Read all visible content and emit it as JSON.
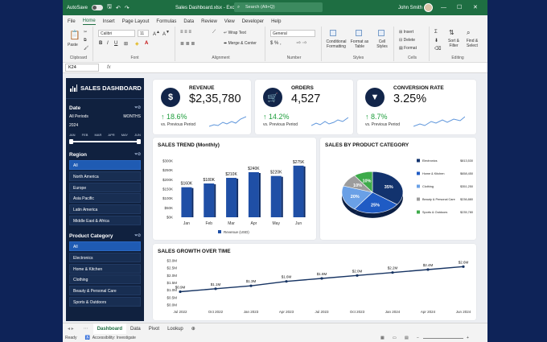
{
  "title_bar": {
    "autosave": "AutoSave",
    "file_name": "Sales Dashboard.xlsx - Excel",
    "search_placeholder": "Search (Alt+Q)",
    "user": "John Smith"
  },
  "menu": [
    "File",
    "Home",
    "Insert",
    "Page Layout",
    "Formulas",
    "Data",
    "Review",
    "View",
    "Developer",
    "Help"
  ],
  "ribbon": {
    "paste": "Paste",
    "clipboard": "Clipboard",
    "font_name": "Calibri",
    "font_size": "11",
    "font": "Font",
    "wrap_text": "Wrap Text",
    "merge_center": "Merge & Center",
    "alignment": "Alignment",
    "number_format": "General",
    "number": "Number",
    "conditional_formatting": "Conditional Formatting",
    "format_as_table": "Format as Table",
    "cell_styles": "Cell Styles",
    "styles": "Styles",
    "insert": "Insert",
    "delete": "Delete",
    "format": "Format",
    "cells": "Cells",
    "sort_filter": "Sort & Filter",
    "find_select": "Find & Select",
    "editing": "Editing"
  },
  "formula_bar": {
    "name_box": "K24",
    "fx": "fx"
  },
  "sidebar": {
    "title": "SALES DASHBOARD",
    "date": {
      "title": "Date",
      "period": "All Periods",
      "period_unit": "MONTHS",
      "year": "2024",
      "months": [
        "JAN",
        "FEB",
        "MAR",
        "APR",
        "MAY",
        "JUN"
      ]
    },
    "region": {
      "title": "Region",
      "items": [
        "All",
        "North America",
        "Europe",
        "Asia Pacific",
        "Latin America",
        "Middle East & Africa"
      ]
    },
    "category": {
      "title": "Product Category",
      "items": [
        "All",
        "Electronics",
        "Home & Kitchen",
        "Clothing",
        "Beauty & Personal Care",
        "Sports & Outdoors"
      ]
    }
  },
  "kpis": [
    {
      "label": "REVENUE",
      "value": "$2,35,780",
      "change": "↑ 18.6%",
      "sub": "vs. Previous Period",
      "icon": "dollar-icon"
    },
    {
      "label": "ORDERS",
      "value": "4,527",
      "change": "↑ 14.2%",
      "sub": "vs. Previous Period",
      "icon": "cart-icon"
    },
    {
      "label": "CONVERSION RATE",
      "value": "3.25%",
      "change": "↑ 8.7%",
      "sub": "vs. Previous Period",
      "icon": "funnel-icon"
    }
  ],
  "charts": {
    "trend_title": "SALES TREND (Monthly)",
    "product_title": "SALES BY PRODUCT CATEGORY",
    "growth_title": "SALES GROWTH OVER TIME"
  },
  "chart_data": [
    {
      "type": "bar",
      "title": "SALES TREND (Monthly)",
      "categories": [
        "Jan",
        "Feb",
        "Mar",
        "Apr",
        "May",
        "Jun"
      ],
      "series": [
        {
          "name": "Revenue (USD)",
          "values": [
            160,
            180,
            210,
            240,
            220,
            275
          ]
        }
      ],
      "value_labels": [
        "$160K",
        "$180K",
        "$210K",
        "$240K",
        "$220K",
        "$275K"
      ],
      "y_ticks": [
        "$0K",
        "$50K",
        "$100K",
        "$150K",
        "$200K",
        "$250K",
        "$300K"
      ],
      "ylim": [
        0,
        300
      ],
      "legend": "bottom",
      "color": "#1f4fa6"
    },
    {
      "type": "pie",
      "title": "SALES BY PRODUCT CATEGORY",
      "labels": [
        "Electronics",
        "Home & Kitchen",
        "Clothing",
        "Beauty & Personal Care",
        "Sports & Outdoors"
      ],
      "values": [
        35,
        25,
        20,
        10,
        10
      ],
      "slice_labels": [
        "35%",
        "25%",
        "20%",
        "10%",
        "10%"
      ],
      "legend_values": [
        "$813,530",
        "$658,450",
        "$351,250",
        "$236,880",
        "$235,780"
      ],
      "colors": [
        "#12336e",
        "#1f5bc4",
        "#6aa0e6",
        "#9c9c9c",
        "#3daa4a"
      ],
      "legend": "right"
    },
    {
      "type": "line",
      "title": "SALES GROWTH OVER TIME",
      "x": [
        "Jul 2022",
        "Oct 2022",
        "Jan 2023",
        "Apr 2023",
        "Jul 2023",
        "Oct 2023",
        "Jan 2024",
        "Apr 2024",
        "Jun 2024"
      ],
      "y": [
        0.9,
        1.1,
        1.3,
        1.6,
        1.8,
        2.0,
        2.2,
        2.4,
        2.6
      ],
      "point_labels": [
        "$0.9M",
        "$1.1M",
        "$1.3M",
        "$1.6M",
        "$1.8M",
        "$2.0M",
        "$2.2M",
        "$2.4M",
        "$2.6M"
      ],
      "y_ticks": [
        "$0.0M",
        "$0.5M",
        "$1.0M",
        "$1.5M",
        "$2.0M",
        "$2.5M",
        "$3.0M"
      ],
      "ylim": [
        0,
        3.0
      ],
      "color": "#173463"
    }
  ],
  "sheet_tabs": [
    "Dashboard",
    "Data",
    "Pivot",
    "Lookup"
  ],
  "status": {
    "ready": "Ready",
    "accessibility": "Accessibility: Investigate"
  }
}
